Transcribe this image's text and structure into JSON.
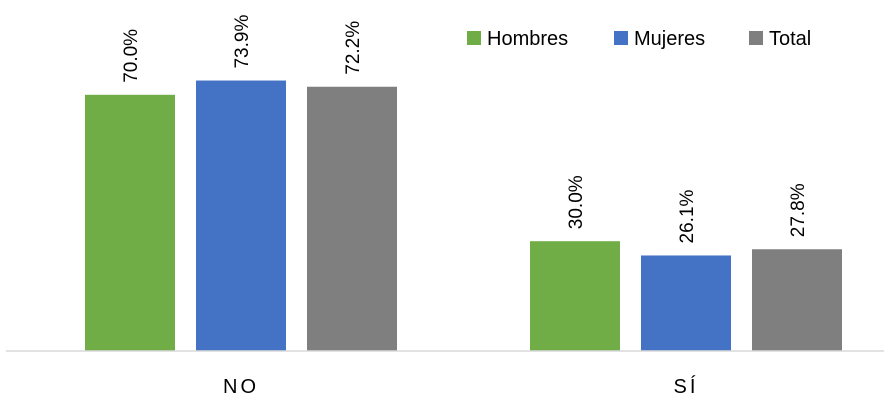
{
  "chart_data": {
    "type": "bar",
    "title": "",
    "xlabel": "",
    "ylabel": "",
    "categories": [
      "NO",
      "SÍ"
    ],
    "series": [
      {
        "name": "Hombres",
        "values": [
          70.0,
          30.0
        ],
        "labels": [
          "70.0%",
          "30.0%"
        ],
        "color": "#70ad47"
      },
      {
        "name": "Mujeres",
        "values": [
          73.9,
          26.1
        ],
        "labels": [
          "73.9%",
          "26.1%"
        ],
        "color": "#4472c4"
      },
      {
        "name": "Total",
        "values": [
          72.2,
          27.8
        ],
        "labels": [
          "72.2%",
          "27.8%"
        ],
        "color": "#7f7f7f"
      }
    ],
    "ylim": [
      0,
      100
    ],
    "grid": false,
    "legend": "top-right"
  }
}
